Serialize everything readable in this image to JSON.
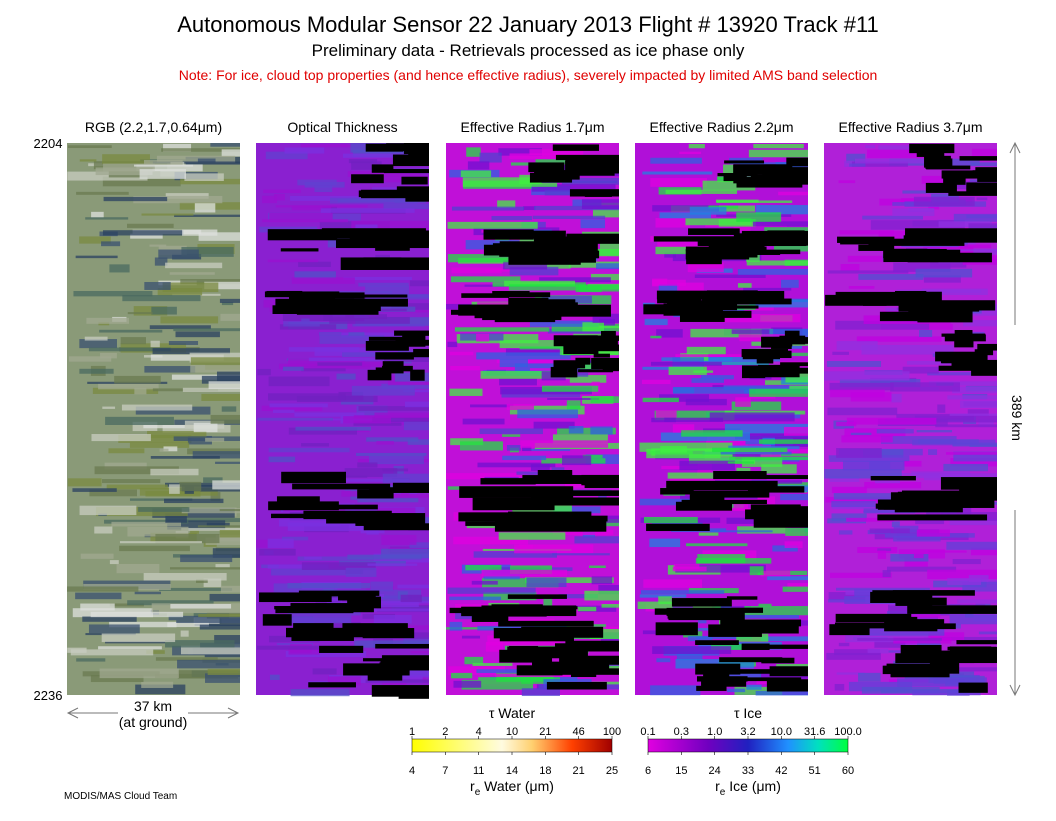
{
  "header": {
    "title": "Autonomous Modular Sensor  22 January 2013  Flight # 13920 Track #11",
    "subtitle": "Preliminary data - Retrievals processed as ice phase only",
    "note": "Note: For ice, cloud top properties (and hence effective radius), severely impacted by limited AMS band selection"
  },
  "panels": [
    {
      "label": "RGB (2.2,1.7,0.64μm)"
    },
    {
      "label": "Optical Thickness"
    },
    {
      "label": "Effective Radius 1.7μm"
    },
    {
      "label": "Effective Radius 2.2μm"
    },
    {
      "label": "Effective Radius 3.7μm"
    }
  ],
  "scanlines": {
    "start": "2204",
    "end": "2236"
  },
  "swath": {
    "width": "37 km",
    "note": "(at ground)"
  },
  "track_length": "389 km",
  "colorbars": [
    {
      "top_label": "τ Water",
      "top_ticks": [
        "1",
        "2",
        "4",
        "10",
        "21",
        "46",
        "100"
      ],
      "bottom_ticks": [
        "4",
        "7",
        "11",
        "14",
        "18",
        "21",
        "25"
      ],
      "bottom_label": {
        "symbol": "r",
        "subscript": "e",
        "text": " Water (μm)"
      }
    },
    {
      "top_label": "τ Ice",
      "top_ticks": [
        "0.1",
        "0.3",
        "1.0",
        "3.2",
        "10.0",
        "31.6",
        "100.0"
      ],
      "bottom_ticks": [
        "6",
        "15",
        "24",
        "33",
        "42",
        "51",
        "60"
      ],
      "bottom_label": {
        "symbol": "r",
        "subscript": "e",
        "text": " Ice (μm)"
      }
    }
  ],
  "credit": "MODIS/MAS Cloud Team"
}
